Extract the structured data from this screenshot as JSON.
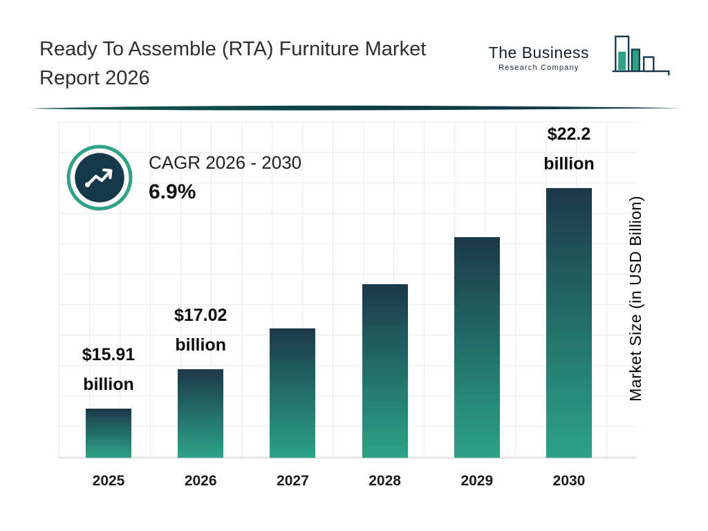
{
  "header": {
    "title_line1": "Ready To Assemble (RTA) Furniture Market",
    "title_line2": "Report 2026",
    "logo": {
      "line1": "The Business",
      "line2": "Research Company"
    }
  },
  "cagr": {
    "label": "CAGR 2026 - 2030",
    "value": "6.9%"
  },
  "chart_data": {
    "type": "bar",
    "title": "Ready To Assemble (RTA) Furniture Market Report 2026",
    "categories": [
      "2025",
      "2026",
      "2027",
      "2028",
      "2029",
      "2030"
    ],
    "values": [
      15.91,
      17.02,
      18.19,
      19.45,
      20.79,
      22.2
    ],
    "bar_labels": [
      {
        "line1": "$15.91",
        "line2": "billion"
      },
      {
        "line1": "$17.02",
        "line2": "billion"
      },
      null,
      null,
      null,
      {
        "line1": "$22.2",
        "line2": "billion"
      }
    ],
    "xlabel": "",
    "ylabel": "Market Size (in USD Billion)",
    "ylim": [
      14.5,
      22.2
    ],
    "grid": true,
    "legend": false,
    "colors": {
      "bar_gradient_top": "#1c3849",
      "bar_gradient_bottom": "#2da287",
      "accent_teal": "#2fa187",
      "dark_navy": "#16394a"
    }
  }
}
